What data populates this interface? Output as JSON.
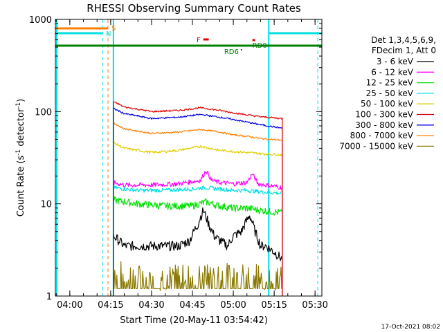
{
  "chart_data": {
    "type": "line",
    "title": "RHESSI Observing Summary Count Rates",
    "xlabel": "Start Time (20-May-11 03:54:42)",
    "ylabel_main": "Count Rate (s",
    "ylabel_sup1": "-1",
    "ylabel_mid": " detector",
    "ylabel_sup2": "-1",
    "ylabel_end": ")",
    "y_scale": "log",
    "ylim": [
      1,
      1000
    ],
    "xlim": [
      "03:54:42",
      "05:32:30"
    ],
    "x_ticks": [
      "04:00",
      "04:15",
      "04:30",
      "04:45",
      "05:00",
      "05:15",
      "05:30"
    ],
    "y_ticks": [
      "1",
      "10",
      "100",
      "1000"
    ],
    "legend_header": [
      "Det 1,3,4,5,6,9,",
      "FDecim 1, Att 0"
    ],
    "legend_placement": "right",
    "timestamp": "17-Oct-2021 08:02",
    "flags": {
      "s_label": "S",
      "n_label": "N",
      "f_label": "F",
      "rd6_label": "RD6",
      "rd0_label": "RD0",
      "s_color": "#ff7f00",
      "n_color": "#00e0e0",
      "f_color": "#e00000",
      "rd_color": "#008000"
    },
    "series": [
      {
        "name": "3 - 6 keV",
        "color": "#000000",
        "data_start": "04:16",
        "data_end": "05:18",
        "x": [
          "04:16",
          "04:20",
          "04:25",
          "04:30",
          "04:35",
          "04:40",
          "04:44",
          "04:47",
          "04:49",
          "04:51",
          "04:53",
          "04:55",
          "04:58",
          "05:00",
          "05:03",
          "05:06",
          "05:08",
          "05:10",
          "05:12",
          "05:15",
          "05:18"
        ],
        "values": [
          4.5,
          3.5,
          3.5,
          3.5,
          3.5,
          3.5,
          4,
          6,
          8.5,
          6,
          4.5,
          4,
          3.5,
          4.5,
          5,
          7.5,
          5,
          3.5,
          3.5,
          3,
          2.5
        ]
      },
      {
        "name": "6 - 12 keV",
        "color": "#ff00ff",
        "data_start": "04:16",
        "data_end": "05:18",
        "x": [
          "04:16",
          "04:20",
          "04:30",
          "04:40",
          "04:48",
          "04:50",
          "04:52",
          "04:55",
          "05:00",
          "05:05",
          "05:07",
          "05:09",
          "05:12",
          "05:18"
        ],
        "values": [
          17,
          16,
          16,
          16.5,
          18,
          23,
          18,
          17,
          16.5,
          17,
          21,
          16.5,
          16,
          15
        ]
      },
      {
        "name": "12 - 25 keV",
        "color": "#00e000",
        "data_start": "04:16",
        "data_end": "05:18",
        "x": [
          "04:16",
          "04:25",
          "04:35",
          "04:45",
          "04:50",
          "04:55",
          "05:00",
          "05:05",
          "05:10",
          "05:18"
        ],
        "values": [
          11,
          10,
          9.5,
          9.5,
          10.5,
          9.5,
          9,
          9,
          8.5,
          8
        ]
      },
      {
        "name": "25 - 50 keV",
        "color": "#00e0e0",
        "data_start": "04:16",
        "data_end": "05:18",
        "x": [
          "04:16",
          "04:25",
          "04:35",
          "04:45",
          "04:50",
          "04:55",
          "05:00",
          "05:05",
          "05:10",
          "05:18"
        ],
        "values": [
          15,
          14,
          14,
          14.5,
          15,
          14.5,
          14,
          14,
          13.5,
          13
        ]
      },
      {
        "name": "50 - 100 keV",
        "color": "#e0d000",
        "data_start": "04:16",
        "data_end": "05:18",
        "x": [
          "04:16",
          "04:20",
          "04:30",
          "04:40",
          "04:48",
          "04:55",
          "05:00",
          "05:05",
          "05:10",
          "05:18"
        ],
        "values": [
          46,
          40,
          36,
          38,
          42,
          38,
          37,
          36,
          35,
          34
        ]
      },
      {
        "name": "100 - 300 keV",
        "color": "#e00000",
        "data_start": "04:16",
        "data_end": "05:18",
        "x": [
          "04:16",
          "04:20",
          "04:30",
          "04:40",
          "04:48",
          "04:55",
          "05:00",
          "05:05",
          "05:10",
          "05:18"
        ],
        "values": [
          128,
          112,
          100,
          103,
          110,
          103,
          97,
          92,
          88,
          84
        ]
      },
      {
        "name": "300 - 800 keV",
        "color": "#0000e0",
        "data_start": "04:16",
        "data_end": "05:18",
        "x": [
          "04:16",
          "04:20",
          "04:30",
          "04:40",
          "04:48",
          "04:55",
          "05:00",
          "05:05",
          "05:10",
          "05:18"
        ],
        "values": [
          108,
          95,
          84,
          87,
          93,
          87,
          82,
          77,
          72,
          66
        ]
      },
      {
        "name": "800 - 7000 keV",
        "color": "#ff7f00",
        "data_start": "04:16",
        "data_end": "05:18",
        "x": [
          "04:16",
          "04:20",
          "04:30",
          "04:40",
          "04:48",
          "04:55",
          "05:00",
          "05:05",
          "05:10",
          "05:18"
        ],
        "values": [
          75,
          65,
          58,
          60,
          64,
          60,
          56,
          54,
          51,
          49
        ]
      },
      {
        "name": "7000 - 15000 keV",
        "color": "#8b7a00",
        "data_start": "04:16",
        "data_end": "05:18",
        "x": [
          "04:16",
          "04:20",
          "04:30",
          "04:40",
          "04:50",
          "05:00",
          "05:10",
          "05:18"
        ],
        "values": [
          2,
          1.8,
          1.6,
          1.7,
          1.7,
          1.8,
          1.7,
          1.6
        ]
      }
    ]
  }
}
